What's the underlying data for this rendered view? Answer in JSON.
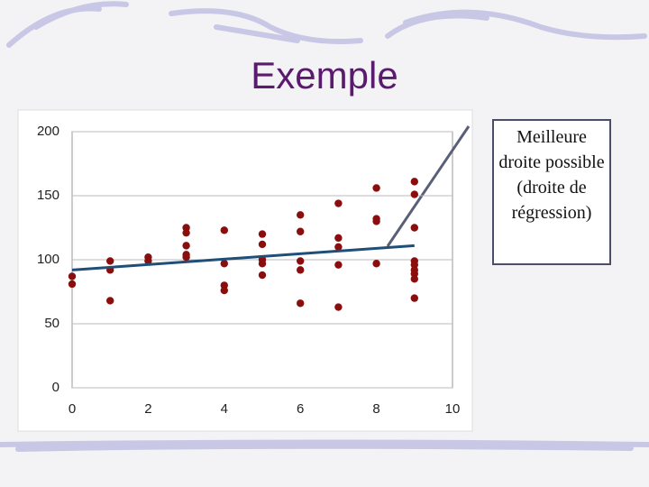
{
  "chart_data": {
    "type": "scatter",
    "title": "Exemple",
    "annotation": "Meilleure droite possible (droite de régression)",
    "xlim": [
      0,
      10
    ],
    "xticks": [
      0,
      2,
      4,
      6,
      8,
      10
    ],
    "ylim": [
      0,
      200
    ],
    "yticks": [
      0,
      50,
      100,
      150,
      200
    ],
    "grid": true,
    "series": [
      {
        "color": "#8b0e0e",
        "x": [
          0,
          0,
          1,
          1,
          1,
          2,
          2,
          3,
          3,
          3,
          3,
          3,
          4,
          4,
          4,
          4,
          5,
          5,
          5,
          5,
          5,
          6,
          6,
          6,
          6,
          6,
          7,
          7,
          7,
          7,
          7,
          8,
          8,
          8,
          8,
          9,
          9,
          9,
          9,
          9,
          9,
          9,
          9,
          9
        ],
        "values": [
          87,
          81,
          99,
          92,
          68,
          102,
          99,
          125,
          121,
          111,
          104,
          102,
          123,
          97,
          80,
          76,
          120,
          112,
          100,
          97,
          88,
          135,
          122,
          99,
          92,
          66,
          144,
          117,
          110,
          96,
          63,
          156,
          132,
          130,
          97,
          161,
          151,
          125,
          99,
          96,
          92,
          89,
          85,
          70
        ]
      }
    ],
    "trendline": {
      "color": "#1f4e79",
      "x": [
        0,
        9
      ],
      "values": [
        92,
        111
      ]
    }
  }
}
